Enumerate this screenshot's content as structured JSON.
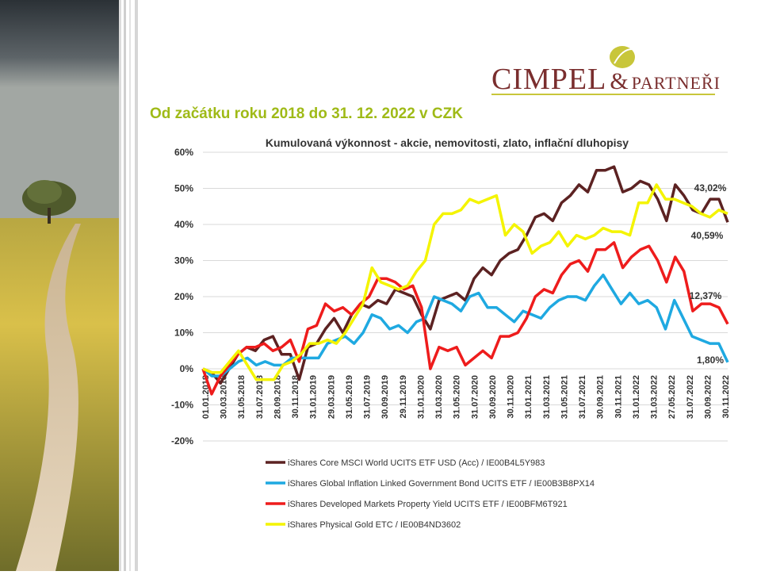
{
  "logo": {
    "name": "CIMPEL",
    "amp": "&",
    "partners": "PARTNEŘI"
  },
  "heading": "Od začátku roku 2018 do 31. 12. 2022 v CZK",
  "chart_data": {
    "type": "line",
    "title": "Kumulovaná  výkonnost  - akcie, nemovitosti, zlato, inflační dluhopisy",
    "ylim": [
      -20,
      60
    ],
    "yticks": [
      -20,
      -10,
      0,
      10,
      20,
      30,
      40,
      50,
      60
    ],
    "ytick_labels": [
      "-20%",
      "-10%",
      "0%",
      "10%",
      "20%",
      "30%",
      "40%",
      "50%",
      "60%"
    ],
    "xtick_labels": [
      "01.01.2018",
      "30.03.2018",
      "31.05.2018",
      "31.07.2018",
      "28.09.2018",
      "30.11.2018",
      "31.01.2019",
      "29.03.2019",
      "31.05.2019",
      "31.07.2019",
      "30.09.2019",
      "29.11.2019",
      "31.01.2020",
      "31.03.2020",
      "31.05.2020",
      "31.07.2020",
      "30.09.2020",
      "30.11.2020",
      "31.01.2021",
      "31.03.2021",
      "31.05.2021",
      "31.07.2021",
      "30.09.2021",
      "30.11.2021",
      "31.01.2022",
      "31.03.2022",
      "27.05.2022",
      "31.07.2022",
      "30.09.2022",
      "30.11.2022"
    ],
    "grid": true,
    "legend": "bottom",
    "series": [
      {
        "name": "iShares Core MSCI World UCITS ETF USD (Acc) / IE00B4L5Y983",
        "color": "#5c2222",
        "values": [
          0,
          -1,
          -4,
          0,
          4,
          6,
          5,
          8,
          9,
          4,
          4,
          -3,
          6,
          7,
          11,
          14,
          10,
          15,
          18,
          17,
          19,
          18,
          22,
          21,
          20,
          15,
          11,
          19,
          20,
          21,
          19,
          25,
          28,
          26,
          30,
          32,
          33,
          37,
          42,
          43,
          41,
          46,
          48,
          51,
          49,
          55,
          55,
          56,
          49,
          50,
          52,
          51,
          47,
          41,
          51,
          48,
          44,
          43,
          47,
          47,
          40.6
        ]
      },
      {
        "name": "iShares Global Inflation Linked Government Bond UCITS ETF / IE00B3B8PX14",
        "color": "#1fa9e1",
        "values": [
          0,
          -2,
          -2,
          0,
          2,
          3,
          1,
          2,
          1,
          1,
          3,
          3,
          3,
          3,
          7,
          8,
          9,
          7,
          10,
          15,
          14,
          11,
          12,
          10,
          13,
          14,
          20,
          19,
          18,
          16,
          20,
          21,
          17,
          17,
          15,
          13,
          16,
          15,
          14,
          17,
          19,
          20,
          20,
          19,
          23,
          26,
          22,
          18,
          21,
          18,
          19,
          17,
          11,
          19,
          14,
          9,
          8,
          7,
          7,
          1.8
        ]
      },
      {
        "name": "iShares Developed Markets Property Yield UCITS ETF / IE00BFM6T921",
        "color": "#ee1c1c",
        "values": [
          0,
          -7,
          -2,
          1,
          4,
          6,
          6,
          7,
          5,
          6,
          8,
          2,
          11,
          12,
          18,
          16,
          17,
          15,
          18,
          20,
          25,
          25,
          24,
          22,
          23,
          17,
          0,
          6,
          5,
          6,
          1,
          3,
          5,
          3,
          9,
          9,
          10,
          14,
          20,
          22,
          21,
          26,
          29,
          30,
          27,
          33,
          33,
          35,
          28,
          31,
          33,
          34,
          30,
          24,
          31,
          27,
          16,
          18,
          18,
          17,
          12.4
        ]
      },
      {
        "name": "iShares Physical Gold ETC / IE00B4ND3602",
        "color": "#f4f400",
        "values": [
          0,
          -1,
          -1,
          2,
          5,
          1,
          -3,
          -3,
          -3,
          1,
          2,
          4,
          7,
          7,
          8,
          7,
          10,
          14,
          18,
          28,
          24,
          23,
          22,
          23,
          27,
          30,
          40,
          43,
          43,
          44,
          47,
          46,
          47,
          48,
          37,
          40,
          38,
          32,
          34,
          35,
          38,
          34,
          37,
          36,
          37,
          39,
          38,
          38,
          37,
          46,
          46,
          51,
          47,
          47,
          46,
          45,
          43,
          42,
          44,
          43
        ]
      }
    ],
    "annotations": [
      "43,02%",
      "40,59%",
      "12,37%",
      "1,80%"
    ]
  }
}
